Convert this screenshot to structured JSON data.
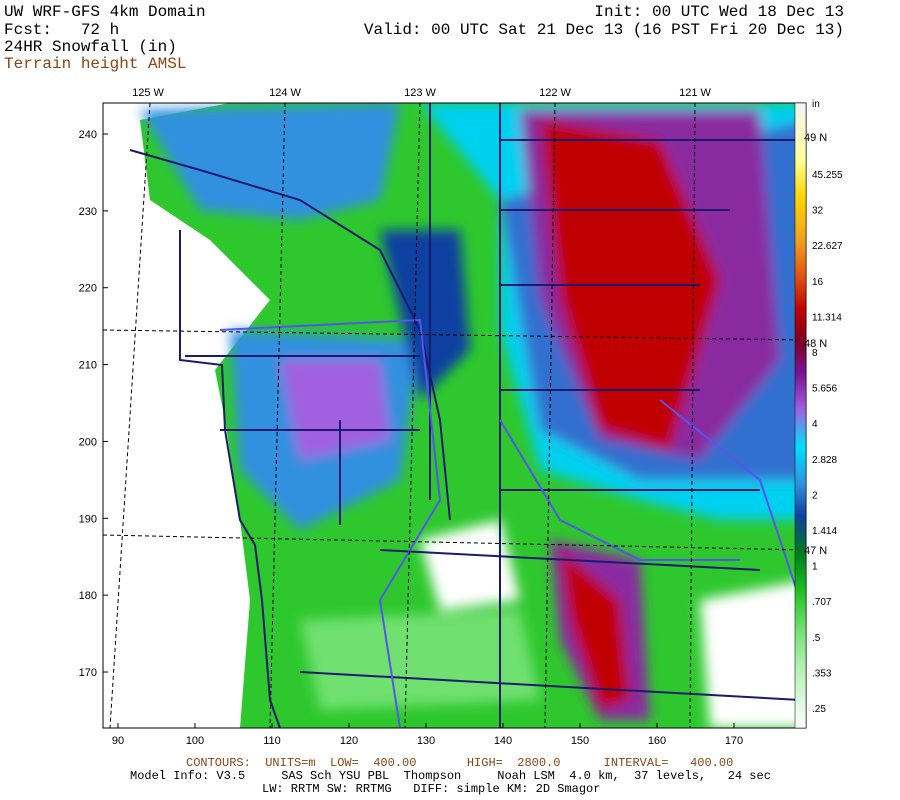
{
  "header": {
    "title": "UW WRF-GFS 4km Domain",
    "forecast": "Fcst:   72 h",
    "field": "24HR Snowfall (in)",
    "contour_field": "Terrain height AMSL",
    "init": "Init: 00 UTC Wed 18 Dec 13",
    "valid": "Valid: 00 UTC Sat 21 Dec 13 (16 PST Fri 20 Dec 13)"
  },
  "map": {
    "longitude_labels": [
      "125 W",
      "124 W",
      "123 W",
      "122 W",
      "121 W"
    ],
    "latitude_labels": [
      "49 N",
      "48 N",
      "47 N"
    ],
    "y_labels": [
      240,
      230,
      220,
      210,
      200,
      190,
      180,
      170
    ],
    "x_labels": [
      90,
      100,
      110,
      120,
      130,
      140,
      150,
      160,
      170
    ]
  },
  "colorbar": {
    "unit": "in",
    "labels": [
      "45.255",
      "32",
      "22.627",
      "16",
      "11.314",
      "8",
      "5.656",
      "4",
      "2.828",
      "2",
      "1.414",
      "1",
      ".707",
      ".5",
      ".353",
      ".25"
    ]
  },
  "footer": {
    "contours": "CONTOURS:  UNITS=m  LOW=  400.00       HIGH=  2800.0      INTERVAL=   400.00",
    "model_info": "Model Info: V3.5     SAS Sch YSU PBL  Thompson     Noah LSM  4.0 km,  37 levels,   24 sec",
    "physics": "LW: RRTM SW: RRTMG   DIFF: simple KM: 2D Smagor"
  }
}
